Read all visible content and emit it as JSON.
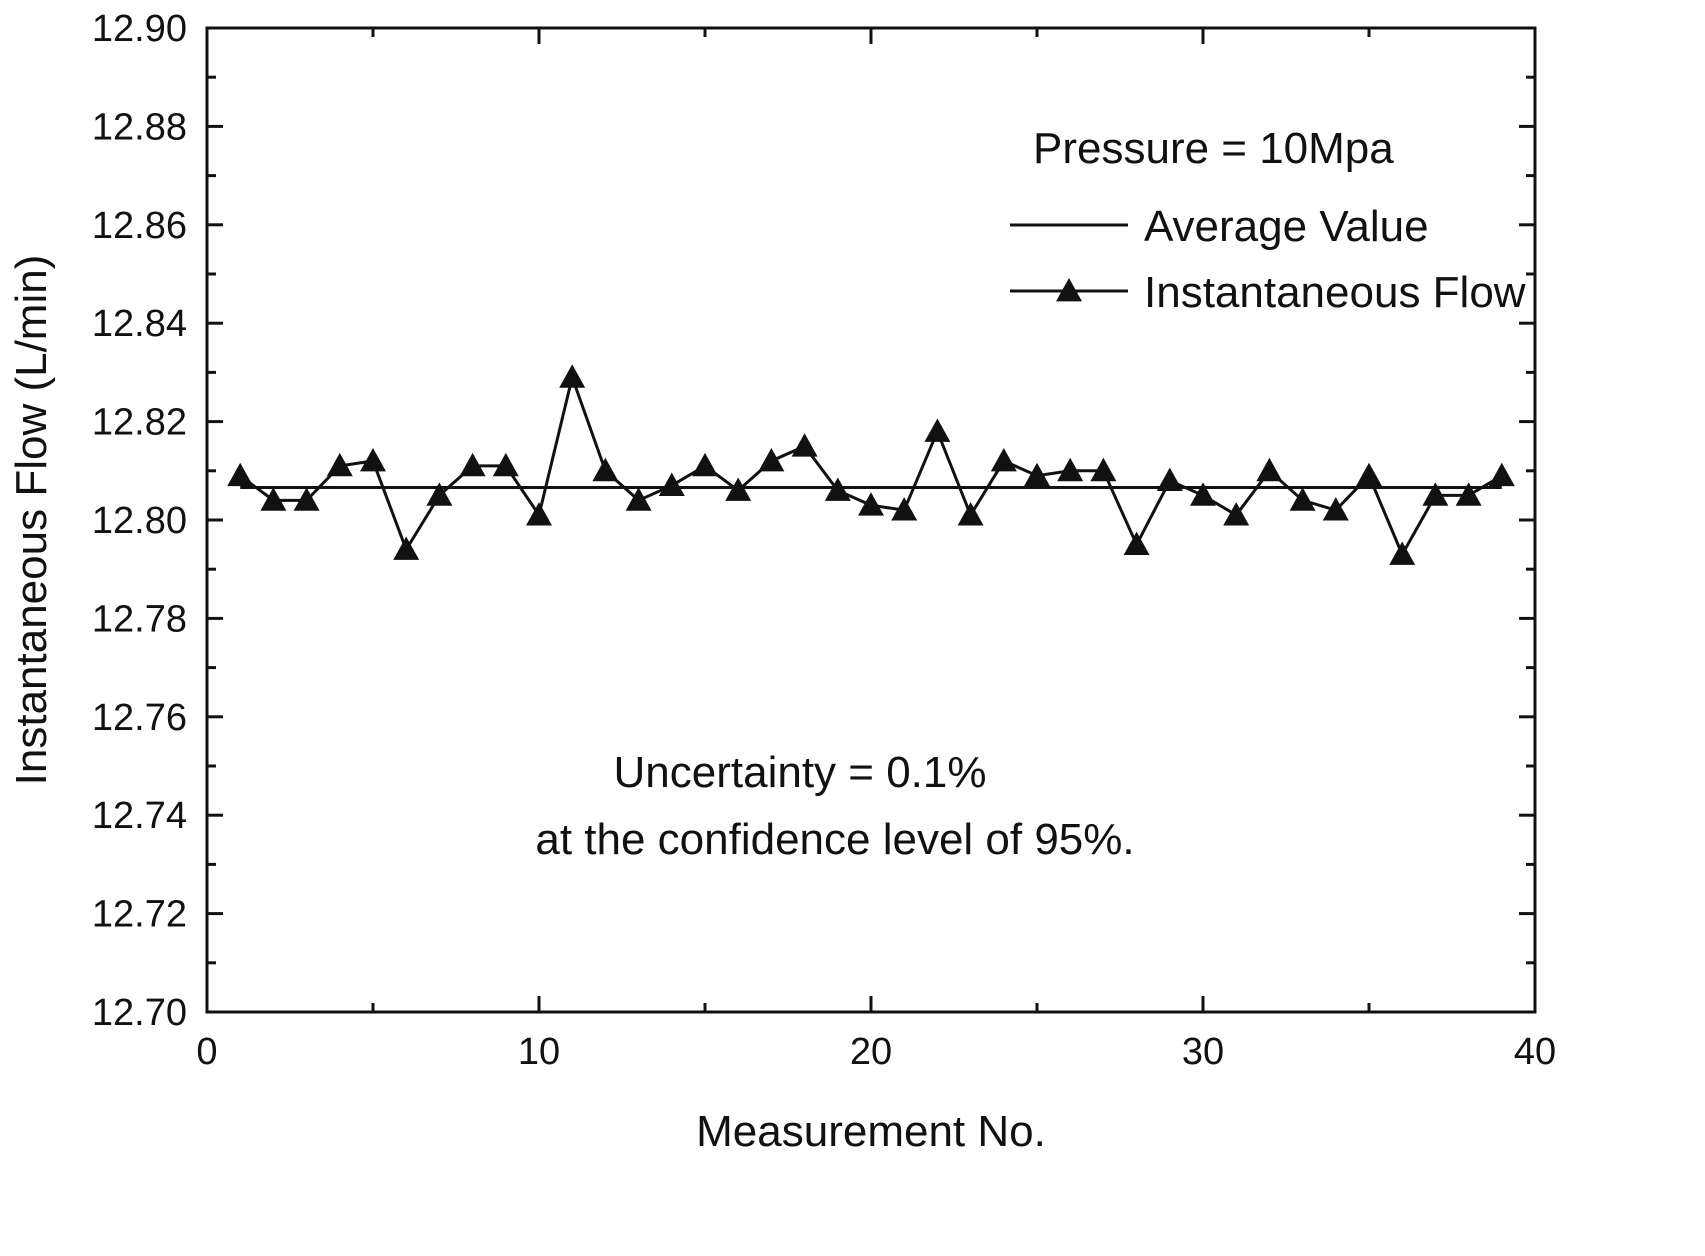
{
  "chart_data": {
    "type": "line",
    "xlabel": "Measurement No.",
    "ylabel": "Instantaneous Flow (L/min)",
    "xlim": [
      0,
      40
    ],
    "ylim": [
      12.7,
      12.9
    ],
    "x_ticks": [
      0,
      10,
      20,
      30,
      40
    ],
    "y_ticks": [
      "12.70",
      "12.72",
      "12.74",
      "12.76",
      "12.78",
      "12.80",
      "12.82",
      "12.84",
      "12.86",
      "12.88",
      "12.90"
    ],
    "grid": false,
    "legend": {
      "placement": "top-right",
      "header": "Pressure = 10Mpa",
      "entries": [
        "Average Value",
        "Instantaneous Flow"
      ]
    },
    "annotations": [
      "Uncertainty = 0.1%",
      "at the confidence level of 95%."
    ],
    "series": [
      {
        "name": "Average Value",
        "style": "line",
        "x": [
          1,
          39
        ],
        "values": [
          12.8066,
          12.8066
        ]
      },
      {
        "name": "Instantaneous Flow",
        "style": "line-triangle",
        "x": [
          1,
          2,
          3,
          4,
          5,
          6,
          7,
          8,
          9,
          10,
          11,
          12,
          13,
          14,
          15,
          16,
          17,
          18,
          19,
          20,
          21,
          22,
          23,
          24,
          25,
          26,
          27,
          28,
          29,
          30,
          31,
          32,
          33,
          34,
          35,
          36,
          37,
          38,
          39
        ],
        "values": [
          12.809,
          12.804,
          12.804,
          12.811,
          12.812,
          12.794,
          12.805,
          12.811,
          12.811,
          12.801,
          12.829,
          12.81,
          12.804,
          12.807,
          12.811,
          12.806,
          12.812,
          12.815,
          12.806,
          12.803,
          12.802,
          12.818,
          12.801,
          12.812,
          12.809,
          12.81,
          12.81,
          12.795,
          12.808,
          12.805,
          12.801,
          12.81,
          12.804,
          12.802,
          12.809,
          12.793,
          12.805,
          12.805,
          12.809
        ]
      }
    ]
  }
}
